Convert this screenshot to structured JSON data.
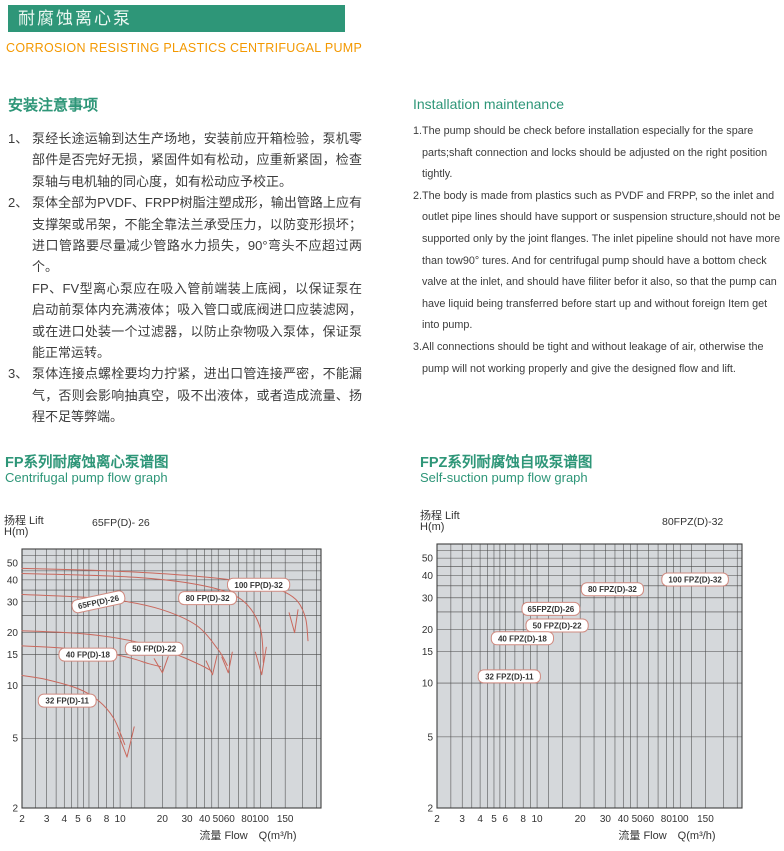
{
  "header": {
    "title_zh": "耐腐蚀离心泵",
    "subtitle_en": "CORROSION RESISTING PLASTICS CENTRIFUGAL PUMP"
  },
  "install_zh": {
    "heading": "安装注意事项",
    "items": [
      {
        "num": "1、",
        "text": "泵经长途运输到达生产场地，安装前应开箱检验，泵机零部件是否完好无损，紧固件如有松动，应重新紧固，检查泵轴与电机轴的同心度，如有松动应予校正。"
      },
      {
        "num": "2、",
        "text": "泵体全部为PVDF、FRPP树脂注塑成形，输出管路上应有支撑架或吊架，不能全靠法兰承受压力，以防变形损坏；进口管路要尽量减少管路水力损失，90°弯头不应超过两个。"
      },
      {
        "num": "",
        "text": "FP、FV型离心泵应在吸入管前端装上底阀，以保证泵在启动前泵体内充满液体；吸入管口或底阀进口应装滤网，或在进口处装一个过滤器，以防止杂物吸入泵体，保证泵能正常运转。"
      },
      {
        "num": "3、",
        "text": "泵体连接点螺栓要均力拧紧，进出口管连接严密，不能漏气，否则会影响抽真空，吸不出液体，或者造成流量、扬程不足等弊端。"
      }
    ]
  },
  "install_en": {
    "heading": "Installation maintenance",
    "items": [
      "1.The pump should be check before installation especially for the spare parts;shaft connection and locks should be adjusted on the right position tightly.",
      "2.The body is made from plastics such as PVDF and FRPP, so the inlet and outlet pipe lines should have support or suspension structure,should not be supported only by the joint flanges. The inlet pipeline should not have more than tow90°  tures. And for centrifugal pump should have a bottom check valve at the inlet, and should have filiter befor it also, so that the pump can have liquid being transferred before start up and without foreign Item get  into pump.",
      "3.All connections should be tight and without leakage of air, otherwise the pump will not working properly and give the designed flow and lift."
    ]
  },
  "colors": {
    "accent_green": "#2e9678",
    "accent_orange": "#f39800",
    "chart_bg": "#d5d8db",
    "grid_line": "#4a4a4a",
    "curve_red": "#c9685d",
    "label_border": "#d08b81",
    "text": "#3c3c3c"
  },
  "chart_data": [
    {
      "type": "line",
      "id": "fp",
      "title": "FP系列耐腐蚀离心泵谱图",
      "subtitle": "Centrifugal pump flow graph",
      "ylabel_1": "扬程  Lift",
      "ylabel_2": "H(m)",
      "top_label": "65FP(D)- 26",
      "xlabel": "流量 Flow　Q(m³/h)",
      "x_scale": "log",
      "y_scale": "log",
      "x_range": [
        2,
        270
      ],
      "y_range": [
        2,
        60
      ],
      "x_ticks": [
        2,
        3,
        4,
        5,
        6,
        8,
        10,
        20,
        30,
        40,
        50,
        60,
        80,
        100,
        150
      ],
      "y_ticks": [
        50,
        40,
        30,
        20,
        15,
        10,
        5,
        2
      ],
      "x_grid": [
        2,
        2.5,
        3,
        3.5,
        4,
        4.5,
        5,
        5.5,
        6,
        7,
        8,
        9,
        10,
        12,
        15,
        20,
        25,
        30,
        35,
        40,
        45,
        50,
        60,
        70,
        80,
        90,
        100,
        120,
        150,
        200,
        250
      ],
      "y_grid": [
        5,
        10,
        15,
        20,
        25,
        30,
        35,
        40,
        45,
        50,
        55
      ],
      "series": [
        {
          "name": "100FP(D)-32",
          "points": [
            [
              2,
              46.5
            ],
            [
              6,
              45.5
            ],
            [
              15,
              44
            ],
            [
              35,
              42
            ],
            [
              70,
              39.5
            ],
            [
              110,
              37
            ],
            [
              150,
              34
            ],
            [
              185,
              30
            ],
            [
              210,
              24
            ],
            [
              218,
              18
            ]
          ],
          "hook": [
            [
              160,
              26
            ],
            [
              175,
              20
            ],
            [
              185,
              27
            ]
          ]
        },
        {
          "name": "80FP(D)-32",
          "points": [
            [
              2,
              43.5
            ],
            [
              6,
              42.5
            ],
            [
              15,
              41
            ],
            [
              30,
              38.5
            ],
            [
              55,
              34.5
            ],
            [
              80,
              29
            ],
            [
              100,
              21
            ],
            [
              105,
              13.5
            ]
          ],
          "hook": [
            [
              92,
              15.5
            ],
            [
              102,
              11.5
            ],
            [
              110,
              16.5
            ]
          ]
        },
        {
          "name": "65FP(D)-26",
          "points": [
            [
              2,
              33
            ],
            [
              5,
              32
            ],
            [
              10,
              30.5
            ],
            [
              20,
              27
            ],
            [
              35,
              22
            ],
            [
              50,
              16
            ],
            [
              58,
              13
            ]
          ],
          "hook": [
            [
              53,
              14.5
            ],
            [
              59,
              11.8
            ],
            [
              63,
              15.5
            ]
          ]
        },
        {
          "name": "50FP(D)-22",
          "points": [
            [
              2,
              20.5
            ],
            [
              5,
              19.8
            ],
            [
              10,
              18.5
            ],
            [
              18,
              16.5
            ],
            [
              28,
              14.5
            ],
            [
              38,
              13
            ],
            [
              44,
              12.2
            ]
          ],
          "hook": [
            [
              41,
              13.8
            ],
            [
              45.5,
              11.5
            ],
            [
              49,
              14.8
            ]
          ]
        },
        {
          "name": "40FP(D)-18",
          "points": [
            [
              2,
              16.8
            ],
            [
              4,
              16.3
            ],
            [
              8,
              15.3
            ],
            [
              12,
              14.3
            ],
            [
              16,
              13.3
            ],
            [
              19.5,
              12.8
            ]
          ],
          "hook": [
            [
              17.5,
              14.2
            ],
            [
              20,
              11.8
            ],
            [
              22,
              14.6
            ]
          ]
        },
        {
          "name": "32FP(D)-11",
          "points": [
            [
              2,
              11.4
            ],
            [
              3,
              10.8
            ],
            [
              5,
              9.6
            ],
            [
              7,
              8.2
            ],
            [
              9,
              6.5
            ],
            [
              10.8,
              4.6
            ]
          ],
          "hook": [
            [
              9.6,
              5.4
            ],
            [
              11.2,
              3.9
            ],
            [
              12.6,
              5.8
            ]
          ]
        }
      ],
      "curve_labels": [
        {
          "text": "65FP(D)-26",
          "q": 7,
          "h": 30,
          "rot": -12
        },
        {
          "text": "80 FP(D)-32",
          "q": 42,
          "h": 31.5,
          "rot": 0
        },
        {
          "text": "100 FP(D)-32",
          "q": 97,
          "h": 37.5,
          "rot": 0
        },
        {
          "text": "50 FP(D)-22",
          "q": 17.5,
          "h": 16.2,
          "rot": 0
        },
        {
          "text": "40 FP(D)-18",
          "q": 5.9,
          "h": 15,
          "rot": 0
        },
        {
          "text": "32 FP(D)-11",
          "q": 4.2,
          "h": 8.2,
          "rot": 0
        }
      ]
    },
    {
      "type": "line",
      "id": "fpz",
      "title": "FPZ系列耐腐蚀自吸泵谱图",
      "subtitle": "Self-suction pump flow graph",
      "ylabel_1": "扬程  Lift",
      "ylabel_2": "H(m)",
      "top_label": "80FPZ(D)-32",
      "xlabel": "流量 Flow　Q(m³/h)",
      "x_scale": "log",
      "y_scale": "log",
      "x_range": [
        2,
        270
      ],
      "y_range": [
        2,
        60
      ],
      "x_ticks": [
        2,
        3,
        4,
        5,
        6,
        8,
        10,
        20,
        30,
        40,
        50,
        60,
        80,
        100,
        150
      ],
      "y_ticks": [
        50,
        40,
        30,
        20,
        15,
        10,
        5,
        2
      ],
      "x_grid": [
        2,
        2.5,
        3,
        3.5,
        4,
        4.5,
        5,
        5.5,
        6,
        7,
        8,
        9,
        10,
        12,
        15,
        20,
        25,
        30,
        35,
        40,
        45,
        50,
        60,
        70,
        80,
        90,
        100,
        120,
        150,
        200,
        250
      ],
      "y_grid": [
        5,
        10,
        15,
        20,
        25,
        30,
        35,
        40,
        45,
        50,
        55
      ],
      "series": [],
      "curve_labels": [
        {
          "text": "100 FPZ(D)-32",
          "q": 127,
          "h": 38,
          "rot": 0
        },
        {
          "text": "80 FPZ(D)-32",
          "q": 33.6,
          "h": 33.5,
          "rot": 0
        },
        {
          "text": "65FPZ(D)-26",
          "q": 12.5,
          "h": 26,
          "rot": 0
        },
        {
          "text": "50 FPZ(D)-22",
          "q": 13.8,
          "h": 21,
          "rot": 0
        },
        {
          "text": "40 FPZ(D)-18",
          "q": 7.9,
          "h": 17.8,
          "rot": 0
        },
        {
          "text": "32 FPZ(D)-11",
          "q": 6.4,
          "h": 10.9,
          "rot": 0
        }
      ]
    }
  ]
}
